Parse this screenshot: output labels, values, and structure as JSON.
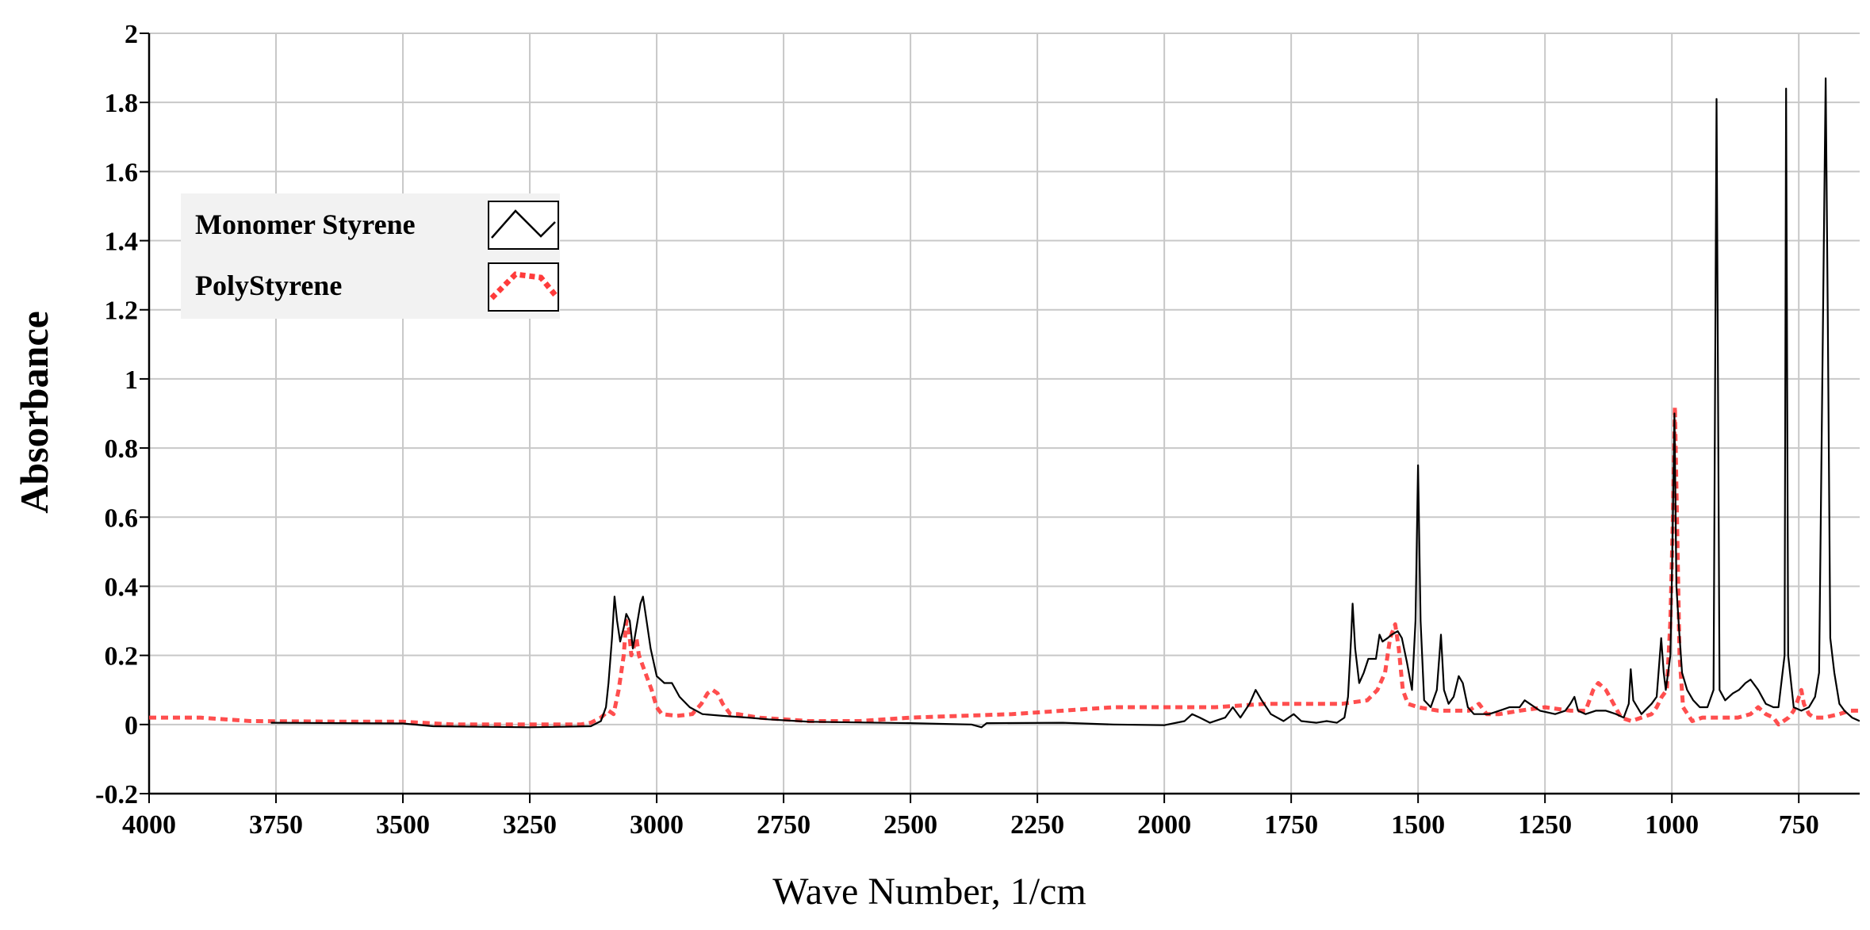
{
  "chart_data": {
    "type": "line",
    "xlabel": "Wave Number,  1/cm",
    "ylabel": "Absorbance",
    "xlim": [
      4000,
      630
    ],
    "ylim": [
      -0.2,
      2
    ],
    "x_reversed": true,
    "grid": true,
    "legend_position": "top-left",
    "x_ticks": [
      "4000",
      "3750",
      "3500",
      "3250",
      "3000",
      "2750",
      "2500",
      "2250",
      "2000",
      "1750",
      "1500",
      "1250",
      "1000",
      "750"
    ],
    "y_ticks": [
      "-0.2",
      "0",
      "0.2",
      "0.4",
      "0.6",
      "0.8",
      "1",
      "1.2",
      "1.4",
      "1.6",
      "1.8",
      "2"
    ],
    "series": [
      {
        "name": "Monomer Styrene",
        "color": "#000000",
        "style": "solid",
        "points": [
          [
            3760,
            0.005
          ],
          [
            3500,
            0.003
          ],
          [
            3440,
            -0.005
          ],
          [
            3250,
            -0.008
          ],
          [
            3130,
            -0.005
          ],
          [
            3110,
            0.01
          ],
          [
            3100,
            0.05
          ],
          [
            3095,
            0.12
          ],
          [
            3088,
            0.25
          ],
          [
            3083,
            0.37
          ],
          [
            3078,
            0.3
          ],
          [
            3072,
            0.24
          ],
          [
            3065,
            0.28
          ],
          [
            3060,
            0.32
          ],
          [
            3053,
            0.3
          ],
          [
            3047,
            0.22
          ],
          [
            3040,
            0.28
          ],
          [
            3032,
            0.35
          ],
          [
            3027,
            0.37
          ],
          [
            3020,
            0.3
          ],
          [
            3012,
            0.22
          ],
          [
            3000,
            0.14
          ],
          [
            2985,
            0.12
          ],
          [
            2970,
            0.12
          ],
          [
            2955,
            0.08
          ],
          [
            2935,
            0.05
          ],
          [
            2910,
            0.03
          ],
          [
            2870,
            0.025
          ],
          [
            2820,
            0.02
          ],
          [
            2780,
            0.015
          ],
          [
            2700,
            0.008
          ],
          [
            2500,
            0.004
          ],
          [
            2380,
            0.0
          ],
          [
            2360,
            -0.008
          ],
          [
            2350,
            0.004
          ],
          [
            2200,
            0.005
          ],
          [
            2100,
            0.0
          ],
          [
            2000,
            -0.002
          ],
          [
            1960,
            0.01
          ],
          [
            1945,
            0.03
          ],
          [
            1930,
            0.02
          ],
          [
            1910,
            0.005
          ],
          [
            1880,
            0.02
          ],
          [
            1865,
            0.05
          ],
          [
            1850,
            0.02
          ],
          [
            1832,
            0.06
          ],
          [
            1820,
            0.1
          ],
          [
            1808,
            0.07
          ],
          [
            1790,
            0.03
          ],
          [
            1765,
            0.01
          ],
          [
            1745,
            0.03
          ],
          [
            1730,
            0.01
          ],
          [
            1700,
            0.005
          ],
          [
            1680,
            0.01
          ],
          [
            1660,
            0.005
          ],
          [
            1645,
            0.02
          ],
          [
            1638,
            0.08
          ],
          [
            1632,
            0.25
          ],
          [
            1629,
            0.35
          ],
          [
            1624,
            0.22
          ],
          [
            1616,
            0.12
          ],
          [
            1607,
            0.15
          ],
          [
            1598,
            0.19
          ],
          [
            1590,
            0.19
          ],
          [
            1583,
            0.19
          ],
          [
            1576,
            0.26
          ],
          [
            1570,
            0.24
          ],
          [
            1560,
            0.25
          ],
          [
            1552,
            0.26
          ],
          [
            1540,
            0.27
          ],
          [
            1532,
            0.25
          ],
          [
            1522,
            0.18
          ],
          [
            1512,
            0.1
          ],
          [
            1505,
            0.3
          ],
          [
            1500,
            0.75
          ],
          [
            1495,
            0.3
          ],
          [
            1488,
            0.07
          ],
          [
            1475,
            0.05
          ],
          [
            1463,
            0.1
          ],
          [
            1455,
            0.26
          ],
          [
            1449,
            0.1
          ],
          [
            1440,
            0.06
          ],
          [
            1430,
            0.08
          ],
          [
            1420,
            0.14
          ],
          [
            1412,
            0.12
          ],
          [
            1402,
            0.05
          ],
          [
            1390,
            0.03
          ],
          [
            1380,
            0.03
          ],
          [
            1360,
            0.03
          ],
          [
            1340,
            0.04
          ],
          [
            1320,
            0.05
          ],
          [
            1300,
            0.05
          ],
          [
            1290,
            0.07
          ],
          [
            1280,
            0.06
          ],
          [
            1260,
            0.04
          ],
          [
            1230,
            0.03
          ],
          [
            1210,
            0.04
          ],
          [
            1200,
            0.06
          ],
          [
            1192,
            0.08
          ],
          [
            1185,
            0.04
          ],
          [
            1170,
            0.03
          ],
          [
            1150,
            0.04
          ],
          [
            1130,
            0.04
          ],
          [
            1110,
            0.03
          ],
          [
            1095,
            0.02
          ],
          [
            1085,
            0.06
          ],
          [
            1081,
            0.16
          ],
          [
            1076,
            0.07
          ],
          [
            1060,
            0.03
          ],
          [
            1040,
            0.06
          ],
          [
            1030,
            0.08
          ],
          [
            1021,
            0.25
          ],
          [
            1016,
            0.15
          ],
          [
            1012,
            0.1
          ],
          [
            1003,
            0.2
          ],
          [
            999,
            0.5
          ],
          [
            995,
            0.9
          ],
          [
            991,
            0.4
          ],
          [
            986,
            0.28
          ],
          [
            980,
            0.15
          ],
          [
            970,
            0.1
          ],
          [
            958,
            0.07
          ],
          [
            945,
            0.05
          ],
          [
            930,
            0.05
          ],
          [
            918,
            0.1
          ],
          [
            912,
            1.81
          ],
          [
            906,
            0.1
          ],
          [
            895,
            0.07
          ],
          [
            880,
            0.09
          ],
          [
            868,
            0.1
          ],
          [
            855,
            0.12
          ],
          [
            845,
            0.13
          ],
          [
            830,
            0.1
          ],
          [
            815,
            0.06
          ],
          [
            800,
            0.05
          ],
          [
            790,
            0.05
          ],
          [
            778,
            0.2
          ],
          [
            775,
            1.84
          ],
          [
            771,
            0.2
          ],
          [
            760,
            0.05
          ],
          [
            745,
            0.04
          ],
          [
            730,
            0.05
          ],
          [
            718,
            0.08
          ],
          [
            710,
            0.15
          ],
          [
            697,
            1.87
          ],
          [
            693,
            1.2
          ],
          [
            688,
            0.25
          ],
          [
            680,
            0.15
          ],
          [
            670,
            0.06
          ],
          [
            660,
            0.04
          ],
          [
            645,
            0.02
          ],
          [
            630,
            0.01
          ]
        ]
      },
      {
        "name": "PolyStyrene",
        "color": "#ff3b3b",
        "style": "dotted",
        "points": [
          [
            4000,
            0.02
          ],
          [
            3900,
            0.02
          ],
          [
            3800,
            0.01
          ],
          [
            3600,
            0.008
          ],
          [
            3500,
            0.008
          ],
          [
            3400,
            0.0
          ],
          [
            3250,
            0.0
          ],
          [
            3150,
            0.0
          ],
          [
            3130,
            0.005
          ],
          [
            3110,
            0.02
          ],
          [
            3095,
            0.04
          ],
          [
            3085,
            0.03
          ],
          [
            3075,
            0.1
          ],
          [
            3065,
            0.2
          ],
          [
            3060,
            0.3
          ],
          [
            3055,
            0.28
          ],
          [
            3050,
            0.2
          ],
          [
            3040,
            0.25
          ],
          [
            3035,
            0.2
          ],
          [
            3020,
            0.14
          ],
          [
            3010,
            0.1
          ],
          [
            3000,
            0.05
          ],
          [
            2990,
            0.03
          ],
          [
            2960,
            0.025
          ],
          [
            2930,
            0.03
          ],
          [
            2912,
            0.06
          ],
          [
            2900,
            0.09
          ],
          [
            2890,
            0.1
          ],
          [
            2880,
            0.09
          ],
          [
            2870,
            0.06
          ],
          [
            2855,
            0.03
          ],
          [
            2840,
            0.03
          ],
          [
            2800,
            0.02
          ],
          [
            2700,
            0.01
          ],
          [
            2600,
            0.01
          ],
          [
            2500,
            0.02
          ],
          [
            2300,
            0.03
          ],
          [
            2200,
            0.04
          ],
          [
            2100,
            0.05
          ],
          [
            2000,
            0.05
          ],
          [
            1900,
            0.05
          ],
          [
            1800,
            0.06
          ],
          [
            1700,
            0.06
          ],
          [
            1650,
            0.06
          ],
          [
            1600,
            0.07
          ],
          [
            1580,
            0.1
          ],
          [
            1565,
            0.15
          ],
          [
            1555,
            0.25
          ],
          [
            1545,
            0.29
          ],
          [
            1538,
            0.22
          ],
          [
            1530,
            0.1
          ],
          [
            1520,
            0.06
          ],
          [
            1500,
            0.05
          ],
          [
            1480,
            0.045
          ],
          [
            1460,
            0.04
          ],
          [
            1400,
            0.04
          ],
          [
            1380,
            0.06
          ],
          [
            1365,
            0.03
          ],
          [
            1340,
            0.03
          ],
          [
            1300,
            0.04
          ],
          [
            1250,
            0.05
          ],
          [
            1200,
            0.04
          ],
          [
            1170,
            0.04
          ],
          [
            1155,
            0.1
          ],
          [
            1145,
            0.12
          ],
          [
            1130,
            0.1
          ],
          [
            1115,
            0.06
          ],
          [
            1100,
            0.02
          ],
          [
            1080,
            0.01
          ],
          [
            1060,
            0.02
          ],
          [
            1040,
            0.03
          ],
          [
            1030,
            0.05
          ],
          [
            1020,
            0.08
          ],
          [
            1010,
            0.1
          ],
          [
            1003,
            0.3
          ],
          [
            998,
            0.6
          ],
          [
            994,
            0.92
          ],
          [
            990,
            0.6
          ],
          [
            985,
            0.2
          ],
          [
            978,
            0.05
          ],
          [
            960,
            0.01
          ],
          [
            940,
            0.02
          ],
          [
            900,
            0.02
          ],
          [
            870,
            0.02
          ],
          [
            845,
            0.03
          ],
          [
            830,
            0.05
          ],
          [
            815,
            0.03
          ],
          [
            800,
            0.02
          ],
          [
            790,
            0.0
          ],
          [
            780,
            0.01
          ],
          [
            770,
            0.02
          ],
          [
            760,
            0.04
          ],
          [
            752,
            0.07
          ],
          [
            745,
            0.1
          ],
          [
            740,
            0.06
          ],
          [
            730,
            0.03
          ],
          [
            720,
            0.02
          ],
          [
            700,
            0.02
          ],
          [
            670,
            0.03
          ],
          [
            650,
            0.04
          ],
          [
            630,
            0.04
          ]
        ]
      }
    ]
  }
}
